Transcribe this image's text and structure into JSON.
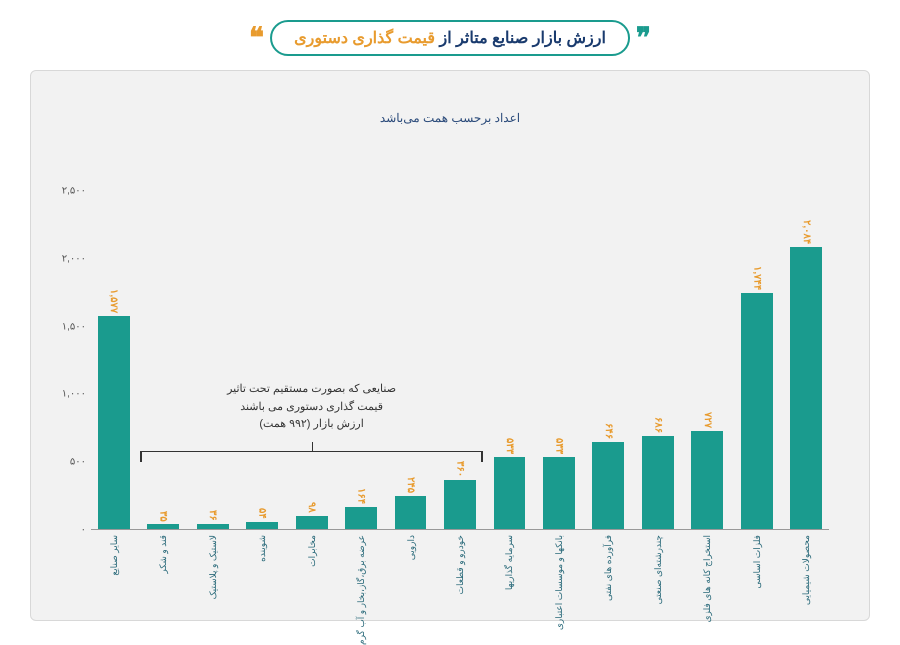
{
  "header": {
    "plain": "ارزش بازار صنایع متاثر از ",
    "accent": "قیمت گذاری دستوری",
    "quote_left_color": "#e89b2e",
    "quote_right_color": "#1a9b8e"
  },
  "subtitle": "اعداد برحسب همت می‌باشد",
  "annotation": {
    "line1": "صنایعی که بصورت مستقیم تحت تاثیر",
    "line2": "قیمت گذاری دستوری می باشند",
    "line3": "ارزش بازار (۹۹۲ همت)"
  },
  "chart": {
    "type": "bar",
    "ylim": [
      0,
      2500
    ],
    "yticks": [
      {
        "v": 0,
        "label": "۰"
      },
      {
        "v": 500,
        "label": "۵۰۰"
      },
      {
        "v": 1000,
        "label": "۱,۰۰۰"
      },
      {
        "v": 1500,
        "label": "۱,۵۰۰"
      },
      {
        "v": 2000,
        "label": "۲,۰۰۰"
      },
      {
        "v": 2500,
        "label": "۲,۵۰۰"
      }
    ],
    "bar_color": "#1a9b8e",
    "value_color": "#e89b2e",
    "label_color": "#2a6a7a",
    "background_color": "#f2f2f2",
    "bars": [
      {
        "label": "محصولات شیمیایی",
        "value": 2084,
        "value_label": "۲,۰۸۴",
        "annotated": false
      },
      {
        "label": "فلزات اساسی",
        "value": 1744,
        "value_label": "۱,۷۴۴",
        "annotated": false
      },
      {
        "label": "استخراج کانه های فلزی",
        "value": 727,
        "value_label": "۷۲۷",
        "annotated": false
      },
      {
        "label": "چندرشته‌ای صنعتی",
        "value": 686,
        "value_label": "۶۸۶",
        "annotated": false
      },
      {
        "label": "فرآورده های نفتی",
        "value": 646,
        "value_label": "۶۴۶",
        "annotated": false
      },
      {
        "label": "بانکها و موسسات اعتباری",
        "value": 533,
        "value_label": "۵۳۳",
        "annotated": false
      },
      {
        "label": "سرمایه گذاریها",
        "value": 533,
        "value_label": "۵۳۳",
        "annotated": false
      },
      {
        "label": "خودرو و قطعات",
        "value": 360,
        "value_label": "۳۶۰",
        "annotated": true
      },
      {
        "label": "دارویی",
        "value": 245,
        "value_label": "۲۴۵",
        "annotated": true
      },
      {
        "label": "عرضه برق،گاز،بخار و آب گرم",
        "value": 164,
        "value_label": "۱۶۴",
        "annotated": true
      },
      {
        "label": "مخابرات",
        "value": 98,
        "value_label": "۹۸",
        "annotated": true
      },
      {
        "label": "شوینده",
        "value": 54,
        "value_label": "۵۴",
        "annotated": true
      },
      {
        "label": "لاستیک و پلاستیک",
        "value": 36,
        "value_label": "۳۶",
        "annotated": true
      },
      {
        "label": "قند و شکر",
        "value": 35,
        "value_label": "۳۵",
        "annotated": true
      },
      {
        "label": "سایر صنایع",
        "value": 1577,
        "value_label": "۱,۵۷۷",
        "annotated": false
      }
    ]
  }
}
